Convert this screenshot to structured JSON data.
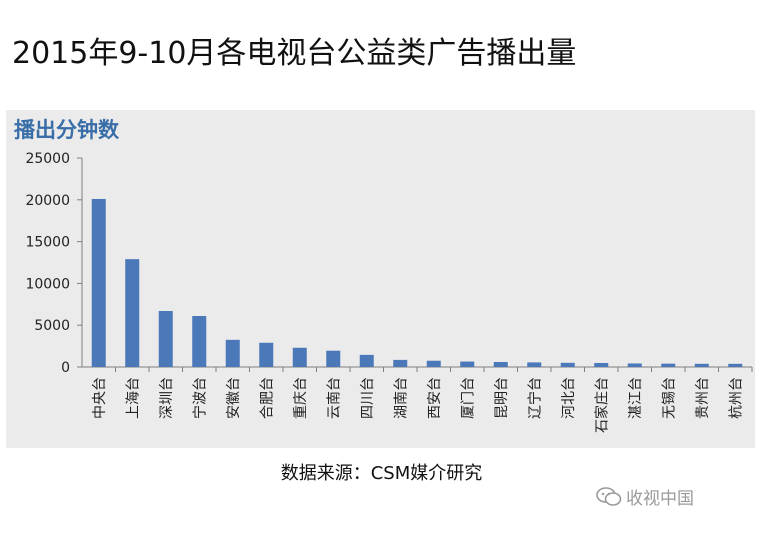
{
  "page_title": "2015年9-10月各电视台公益类广告播出量",
  "source": "数据来源：CSM媒介研究",
  "watermark": "收视中国",
  "colors": {
    "bar": "#4a78b8",
    "panel": "#ebebeb",
    "chart_title": "#3a6ea8"
  },
  "chart_data": {
    "type": "bar",
    "title": "播出分钟数",
    "xlabel": "",
    "ylabel": "",
    "ylim": [
      0,
      25000
    ],
    "yticks": [
      0,
      5000,
      10000,
      15000,
      20000,
      25000
    ],
    "grid": false,
    "categories": [
      "中央台",
      "上海台",
      "深圳台",
      "宁波台",
      "安徽台",
      "合肥台",
      "重庆台",
      "云南台",
      "四川台",
      "湖南台",
      "西安台",
      "厦门台",
      "昆明台",
      "辽宁台",
      "河北台",
      "石家庄台",
      "湛江台",
      "无锡台",
      "贵州台",
      "杭州台"
    ],
    "values": [
      20100,
      12900,
      6700,
      6100,
      3250,
      2900,
      2300,
      1950,
      1450,
      850,
      750,
      650,
      600,
      550,
      500,
      480,
      420,
      400,
      380,
      380
    ]
  }
}
